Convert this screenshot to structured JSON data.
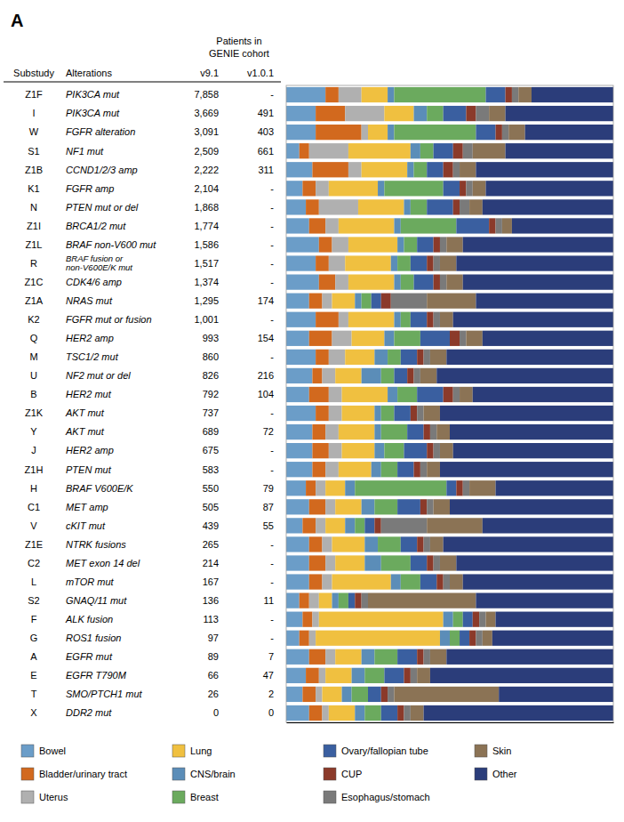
{
  "chart_data": {
    "type": "bar",
    "orientation": "horizontal",
    "stacked": true,
    "title": "A",
    "category_label": "Substudy",
    "categories": [
      "Z1F",
      "I",
      "W",
      "S1",
      "Z1B",
      "K1",
      "N",
      "Z1I",
      "Z1L",
      "R",
      "Z1C",
      "Z1A",
      "K2",
      "Q",
      "M",
      "U",
      "B",
      "Z1K",
      "Y",
      "J",
      "Z1H",
      "H",
      "C1",
      "V",
      "Z1E",
      "C2",
      "L",
      "S2",
      "F",
      "G",
      "A",
      "E",
      "T",
      "X"
    ],
    "alterations_label": "Alterations",
    "alterations": [
      "PIK3CA mut",
      "PIK3CA mut",
      "FGFR alteration",
      "NF1 mut",
      "CCND1/2/3 amp",
      "FGFR amp",
      "PTEN mut or del",
      "BRCA1/2 mut",
      "BRAF non-V600 mut",
      [
        "BRAF fusion or",
        "non-V600E/K mut"
      ],
      "CDK4/6 amp",
      "NRAS mut",
      "FGFR mut or fusion",
      "HER2 amp",
      "TSC1/2 mut",
      "NF2 mut or del",
      "HER2 mut",
      "AKT mut",
      "AKT mut",
      "HER2 amp",
      "PTEN mut",
      "BRAF V600E/K",
      "MET amp",
      "cKIT mut",
      "NTRK fusions",
      "MET exon 14 del",
      "mTOR mut",
      "GNAQ/11 mut",
      "ALK fusion",
      "ROS1 fusion",
      "EGFR mut",
      "EGFR T790M",
      "SMO/PTCH1 mut",
      "DDR2 mut"
    ],
    "cohort_label": [
      "Patients in",
      "GENIE cohort"
    ],
    "cohorts": [
      {
        "name": "v9.1",
        "values": [
          "7,858",
          "3,669",
          "3,091",
          "2,509",
          "2,222",
          "2,104",
          "1,868",
          "1,774",
          "1,586",
          "1,517",
          "1,374",
          "1,295",
          "1,001",
          "993",
          "860",
          "826",
          "792",
          "737",
          "689",
          "675",
          "583",
          "550",
          "505",
          "439",
          "265",
          "214",
          "167",
          "136",
          "113",
          "97",
          "89",
          "66",
          "26",
          "0"
        ]
      },
      {
        "name": "v1.0.1",
        "values": [
          "-",
          "491",
          "403",
          "661",
          "311",
          "-",
          "-",
          "-",
          "-",
          "-",
          "-",
          "174",
          "-",
          "154",
          "-",
          "216",
          "104",
          "-",
          "72",
          "-",
          "-",
          "79",
          "87",
          "55",
          "-",
          "-",
          "-",
          "11",
          "-",
          "-",
          "7",
          "47",
          "2",
          "0"
        ]
      }
    ],
    "xlim": [
      0,
      1
    ],
    "xticks": [],
    "tick_labels": false,
    "legend": "bottom",
    "series": [
      {
        "name": "Bowel",
        "color": "#6B9DC8",
        "values": [
          0.12,
          0.09,
          0.09,
          0.04,
          0.08,
          0.05,
          0.06,
          0.07,
          0.1,
          0.09,
          0.1,
          0.07,
          0.09,
          0.07,
          0.09,
          0.08,
          0.07,
          0.09,
          0.08,
          0.08,
          0.08,
          0.06,
          0.07,
          0.05,
          0.07,
          0.07,
          0.07,
          0.04,
          0.05,
          0.04,
          0.07,
          0.06,
          0.05,
          0.07
        ]
      },
      {
        "name": "Bladder/urinary tract",
        "color": "#D2691E",
        "values": [
          0.04,
          0.09,
          0.14,
          0.03,
          0.11,
          0.04,
          0.04,
          0.05,
          0.04,
          0.04,
          0.05,
          0.04,
          0.07,
          0.07,
          0.04,
          0.03,
          0.06,
          0.04,
          0.04,
          0.05,
          0.04,
          0.03,
          0.05,
          0.04,
          0.04,
          0.05,
          0.04,
          0.03,
          0.03,
          0.03,
          0.05,
          0.04,
          0.04,
          0.04
        ]
      },
      {
        "name": "Uterus",
        "color": "#B0B0B0",
        "values": [
          0.07,
          0.12,
          0.02,
          0.12,
          0.04,
          0.04,
          0.12,
          0.04,
          0.05,
          0.05,
          0.04,
          0.03,
          0.03,
          0.06,
          0.05,
          0.04,
          0.04,
          0.04,
          0.04,
          0.04,
          0.04,
          0.03,
          0.03,
          0.03,
          0.03,
          0.03,
          0.03,
          0.03,
          0.02,
          0.02,
          0.03,
          0.02,
          0.02,
          0.02
        ]
      },
      {
        "name": "Lung",
        "color": "#F0C040",
        "values": [
          0.08,
          0.09,
          0.06,
          0.19,
          0.14,
          0.15,
          0.14,
          0.17,
          0.15,
          0.14,
          0.14,
          0.07,
          0.14,
          0.1,
          0.09,
          0.08,
          0.14,
          0.1,
          0.11,
          0.1,
          0.1,
          0.06,
          0.08,
          0.06,
          0.1,
          0.09,
          0.18,
          0.04,
          0.38,
          0.38,
          0.08,
          0.08,
          0.06,
          0.08
        ]
      },
      {
        "name": "CNS/brain",
        "color": "#5B8DB8",
        "values": [
          0.02,
          0.04,
          0.02,
          0.03,
          0.02,
          0.02,
          0.02,
          0.02,
          0.02,
          0.02,
          0.02,
          0.02,
          0.02,
          0.03,
          0.04,
          0.06,
          0.03,
          0.02,
          0.02,
          0.03,
          0.03,
          0.03,
          0.04,
          0.03,
          0.04,
          0.05,
          0.03,
          0.02,
          0.03,
          0.03,
          0.04,
          0.04,
          0.03,
          0.03
        ]
      },
      {
        "name": "Breast",
        "color": "#6BAA5E",
        "values": [
          0.28,
          0.05,
          0.25,
          0.04,
          0.04,
          0.18,
          0.05,
          0.17,
          0.04,
          0.04,
          0.04,
          0.03,
          0.03,
          0.08,
          0.04,
          0.04,
          0.06,
          0.04,
          0.08,
          0.06,
          0.05,
          0.28,
          0.07,
          0.03,
          0.07,
          0.09,
          0.06,
          0.03,
          0.03,
          0.03,
          0.07,
          0.06,
          0.05,
          0.05
        ]
      },
      {
        "name": "Ovary/fallopian tube",
        "color": "#3A5FA0",
        "values": [
          0.06,
          0.07,
          0.06,
          0.06,
          0.05,
          0.05,
          0.08,
          0.1,
          0.05,
          0.05,
          0.06,
          0.03,
          0.05,
          0.09,
          0.05,
          0.04,
          0.08,
          0.05,
          0.05,
          0.07,
          0.05,
          0.03,
          0.07,
          0.03,
          0.05,
          0.05,
          0.05,
          0.02,
          0.03,
          0.03,
          0.06,
          0.06,
          0.04,
          0.05
        ]
      },
      {
        "name": "CUP",
        "color": "#8B3A2A",
        "values": [
          0.02,
          0.03,
          0.02,
          0.03,
          0.03,
          0.02,
          0.02,
          0.02,
          0.02,
          0.02,
          0.02,
          0.03,
          0.02,
          0.03,
          0.02,
          0.02,
          0.03,
          0.02,
          0.02,
          0.02,
          0.02,
          0.02,
          0.02,
          0.02,
          0.02,
          0.02,
          0.02,
          0.02,
          0.02,
          0.02,
          0.02,
          0.02,
          0.02,
          0.02
        ]
      },
      {
        "name": "Esophagus/stomach",
        "color": "#7A7A7A",
        "values": [
          0.02,
          0.04,
          0.02,
          0.03,
          0.02,
          0.02,
          0.03,
          0.02,
          0.02,
          0.02,
          0.02,
          0.11,
          0.02,
          0.02,
          0.02,
          0.02,
          0.02,
          0.02,
          0.02,
          0.02,
          0.02,
          0.02,
          0.02,
          0.14,
          0.02,
          0.02,
          0.02,
          0.02,
          0.02,
          0.02,
          0.02,
          0.02,
          0.02,
          0.02
        ]
      },
      {
        "name": "Skin",
        "color": "#8B7355",
        "values": [
          0.04,
          0.05,
          0.05,
          0.1,
          0.05,
          0.04,
          0.04,
          0.03,
          0.05,
          0.05,
          0.05,
          0.15,
          0.04,
          0.05,
          0.05,
          0.05,
          0.04,
          0.05,
          0.04,
          0.04,
          0.04,
          0.08,
          0.05,
          0.17,
          0.04,
          0.05,
          0.04,
          0.33,
          0.03,
          0.03,
          0.05,
          0.04,
          0.32,
          0.04
        ]
      },
      {
        "name": "Other",
        "color": "#2B3D7A",
        "values": [
          0.25,
          0.33,
          0.27,
          0.33,
          0.42,
          0.39,
          0.4,
          0.31,
          0.46,
          0.48,
          0.46,
          0.42,
          0.49,
          0.4,
          0.51,
          0.54,
          0.43,
          0.53,
          0.5,
          0.49,
          0.53,
          0.36,
          0.5,
          0.4,
          0.52,
          0.48,
          0.46,
          0.42,
          0.36,
          0.37,
          0.51,
          0.56,
          0.35,
          0.58
        ]
      }
    ]
  }
}
